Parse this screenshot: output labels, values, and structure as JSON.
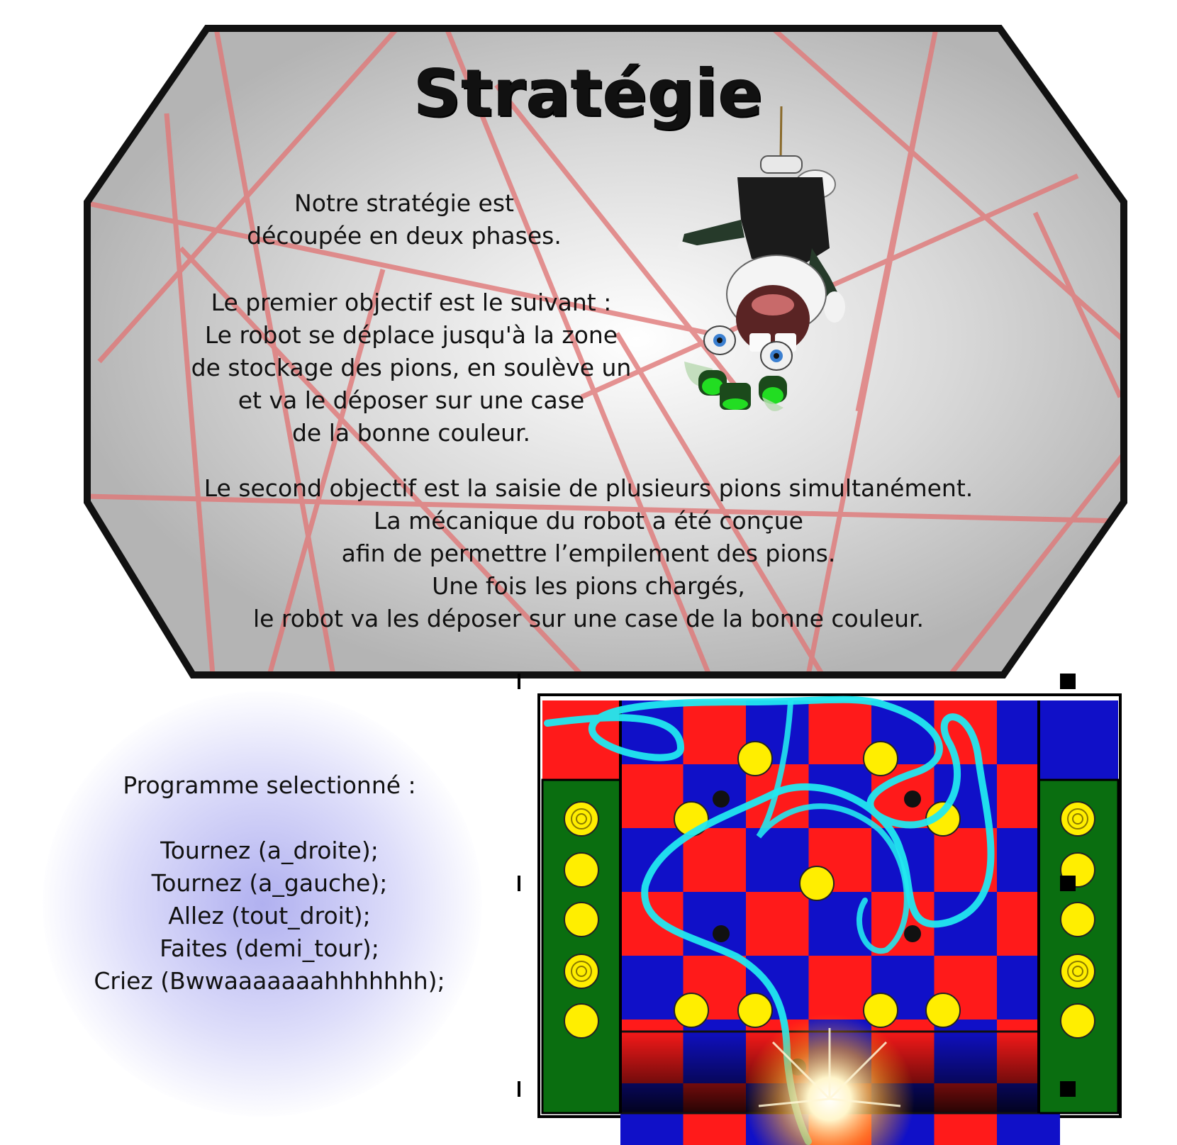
{
  "title": "Stratégie",
  "intro_lines": [
    "Notre stratégie est",
    "découpée en deux phases."
  ],
  "objective1_lines": [
    "Le premier objectif est le suivant :",
    "Le robot se déplace jusqu'à la zone",
    "de stockage des pions, en soulève un",
    "et va le déposer sur une case",
    "de la bonne couleur."
  ],
  "objective2_lines": [
    "Le second objectif est la saisie de plusieurs pions simultanément.",
    "La mécanique du robot a été conçue",
    "afin de permettre l’empilement des pions.",
    "Une fois les pions chargés,",
    "le robot va les déposer sur une case de la bonne couleur."
  ],
  "program": {
    "title": "Programme selectionné :",
    "lines": [
      "Tournez (a_droite);",
      "Tournez (a_gauche);",
      "Allez (tout_droit);",
      "Faites (demi_tour);",
      "Criez (Bwwaaaaaaahhhhhhh);"
    ]
  },
  "illustrations": {
    "character": "hanging-rabbid-robot",
    "board": "game-board-with-robot-path"
  },
  "colors": {
    "board_red": "#ff1a1a",
    "board_blue": "#1010c8",
    "board_green": "#0a6e10",
    "pawn_yellow": "#ffee00",
    "path_cyan": "#22e8f0",
    "laser_red": "#e07878"
  }
}
